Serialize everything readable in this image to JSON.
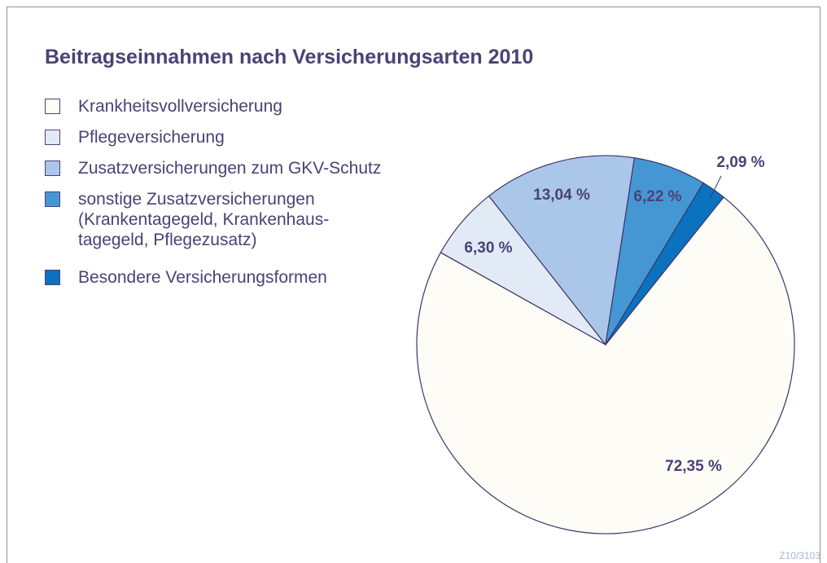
{
  "chart_data": {
    "type": "pie",
    "title": "Beitragseinnahmen nach Versicherungsarten 2010",
    "categories": [
      "Krankheitsvollversicherung",
      "Pflegeversicherung",
      "Zusatzversicherungen zum GKV-Schutz",
      "sonstige Zusatzversicherungen\n(Krankentagegeld, Krankenhaus-\ntagegeld, Pflegezusatz)",
      "Besondere Versicherungsformen"
    ],
    "values": [
      72.35,
      6.3,
      13.04,
      6.22,
      2.09
    ],
    "value_labels": [
      "72,35 %",
      "6,30 %",
      "13,04 %",
      "6,22 %",
      "2,09 %"
    ],
    "colors": [
      "#fdfcf6",
      "#e2eaf6",
      "#aac6e9",
      "#4597d4",
      "#0b72c0"
    ],
    "note": "Z10/3103"
  }
}
